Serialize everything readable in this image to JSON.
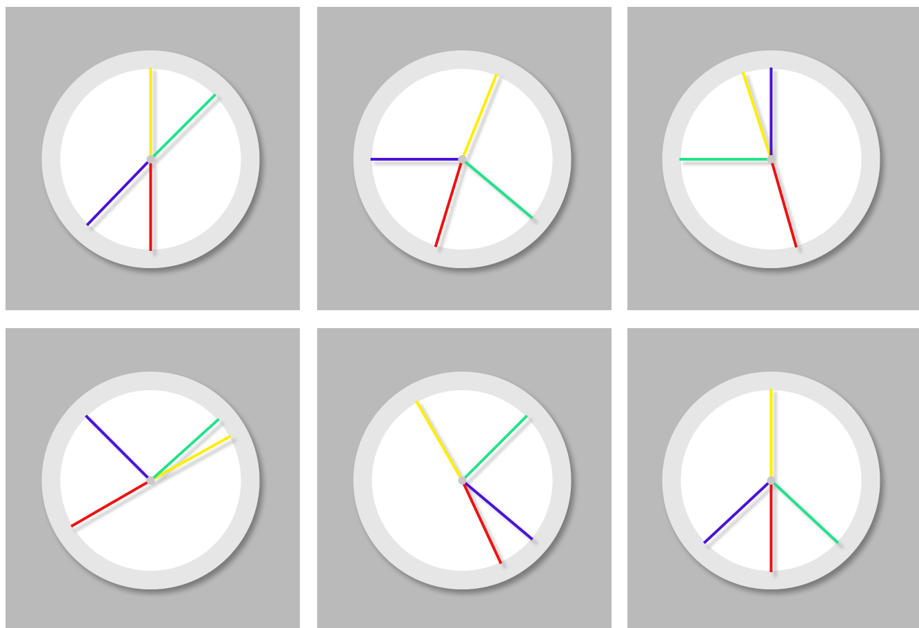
{
  "colors": {
    "page_background": "#ffffff",
    "panel_background": "#bababa",
    "clock_ring": "#e6e6e6",
    "clock_face": "#ffffff",
    "hub": "#c8c8c8",
    "hand_shadow": "#9a9a9a"
  },
  "hand_colors": {
    "yellow": "#ffee00",
    "green": "#22e28a",
    "blue": "#4a12d8",
    "red": "#ee1111"
  },
  "hand_order": [
    "yellow",
    "green",
    "blue",
    "red"
  ],
  "panels": [
    {
      "id": "clock-1",
      "hands": {
        "yellow": 0,
        "green": 45,
        "blue": 224,
        "red": 180
      }
    },
    {
      "id": "clock-2",
      "hands": {
        "yellow": 22,
        "green": 130,
        "blue": 270,
        "red": 197
      }
    },
    {
      "id": "clock-3",
      "hands": {
        "yellow": 342,
        "green": 270,
        "blue": 0,
        "red": 164
      }
    },
    {
      "id": "clock-4",
      "hands": {
        "yellow": 61,
        "green": 48,
        "blue": 315,
        "red": 240
      }
    },
    {
      "id": "clock-5",
      "hands": {
        "yellow": 330,
        "green": 45,
        "blue": 130,
        "red": 155
      }
    },
    {
      "id": "clock-6",
      "hands": {
        "yellow": 0,
        "green": 133,
        "blue": 227,
        "red": 180
      }
    }
  ]
}
